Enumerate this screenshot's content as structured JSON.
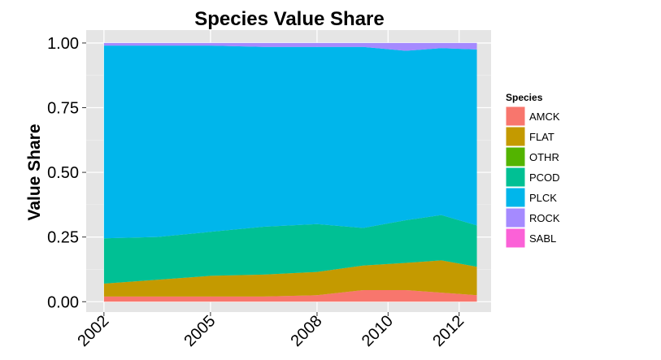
{
  "chart_data": {
    "type": "area",
    "stacked": true,
    "title": "Species Value Share",
    "xlabel": "",
    "ylabel": "Value Share",
    "xlim": [
      2001.5,
      2012.9
    ],
    "ylim": [
      -0.04,
      1.05
    ],
    "yticks": [
      0.0,
      0.25,
      0.5,
      0.75,
      1.0
    ],
    "ytick_labels": [
      "0.00",
      "0.25",
      "0.50",
      "0.75",
      "1.00"
    ],
    "xticks": [
      2002,
      2005,
      2008,
      2010,
      2012
    ],
    "xtick_labels": [
      "2002",
      "2005",
      "2008",
      "2010",
      "2012"
    ],
    "legend": {
      "title": "Species",
      "position": "right"
    },
    "grid": true,
    "x": [
      2002,
      2003.5,
      2005,
      2006.5,
      2008,
      2009.3,
      2010.5,
      2011.5,
      2012.5
    ],
    "series": [
      {
        "name": "AMCK",
        "color": "#F8766D",
        "values": [
          0.02,
          0.02,
          0.02,
          0.02,
          0.025,
          0.045,
          0.045,
          0.035,
          0.025
        ]
      },
      {
        "name": "FLAT",
        "color": "#C49A00",
        "values": [
          0.05,
          0.065,
          0.08,
          0.085,
          0.09,
          0.095,
          0.105,
          0.125,
          0.11
        ]
      },
      {
        "name": "OTHR",
        "color": "#53B400",
        "values": [
          0.0,
          0.0,
          0.0,
          0.0,
          0.0,
          0.0,
          0.0,
          0.0,
          0.0
        ]
      },
      {
        "name": "PCOD",
        "color": "#00C094",
        "values": [
          0.175,
          0.165,
          0.17,
          0.185,
          0.185,
          0.145,
          0.165,
          0.175,
          0.16
        ]
      },
      {
        "name": "PLCK",
        "color": "#00B6EB",
        "values": [
          0.745,
          0.74,
          0.72,
          0.695,
          0.685,
          0.7,
          0.655,
          0.645,
          0.68
        ]
      },
      {
        "name": "ROCK",
        "color": "#A58AFF",
        "values": [
          0.01,
          0.01,
          0.01,
          0.015,
          0.015,
          0.015,
          0.03,
          0.02,
          0.025
        ]
      },
      {
        "name": "SABL",
        "color": "#FB61D7",
        "values": [
          0.0,
          0.0,
          0.0,
          0.0,
          0.0,
          0.0,
          0.0,
          0.0,
          0.0
        ]
      }
    ]
  }
}
